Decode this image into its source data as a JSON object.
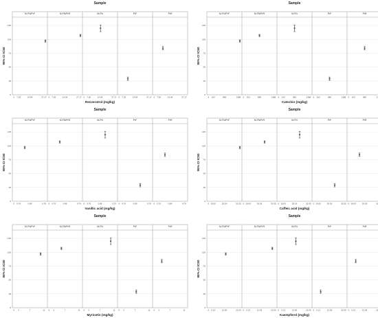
{
  "chart_data": [
    {
      "type": "scatter",
      "title": "Sample",
      "ylabel": "95% CI IC50",
      "xlabel": "Resveratrol (mg/kg)",
      "facets": [
        "M-FN/PrF",
        "M-FN/PrR",
        "M-FN",
        "PrF",
        "PrR"
      ],
      "xticks": [
        "7.26",
        "14.04",
        "27.17"
      ],
      "xlim": [
        0,
        27.17
      ],
      "yticks": [
        "0",
        "25",
        "50",
        "75",
        "100",
        "125"
      ],
      "ylim": [
        0,
        140
      ],
      "points": [
        {
          "x": 27.17,
          "y": 97,
          "low": 95,
          "high": 99
        },
        {
          "x": 27.17,
          "y": 107,
          "low": 105,
          "high": 109
        },
        {
          "x": 14.04,
          "y": 120,
          "low": 114,
          "high": 126
        },
        {
          "x": 7.26,
          "y": 29,
          "low": 26,
          "high": 32
        },
        {
          "x": 7.26,
          "y": 84,
          "low": 81,
          "high": 87
        }
      ]
    },
    {
      "type": "scatter",
      "title": "Sample",
      "ylabel": "95% CI IC50",
      "xlabel": "Catechin (mg/kg)",
      "facets": [
        "M-FN/PrF",
        "M-FN/PrR",
        "M-FN",
        "PrF",
        "PrR"
      ],
      "xticks": [
        "163",
        "686",
        "1368"
      ],
      "xlim": [
        0,
        1368
      ],
      "yticks": [
        "0",
        "25",
        "50",
        "75",
        "100",
        "125"
      ],
      "ylim": [
        0,
        140
      ],
      "points": [
        {
          "x": 1368,
          "y": 97,
          "low": 95,
          "high": 99
        },
        {
          "x": 686,
          "y": 107,
          "low": 105,
          "high": 109
        },
        {
          "x": 686,
          "y": 120,
          "low": 114,
          "high": 126
        },
        {
          "x": 686,
          "y": 29,
          "low": 26,
          "high": 32
        },
        {
          "x": 686,
          "y": 84,
          "low": 81,
          "high": 87
        }
      ]
    },
    {
      "type": "scatter",
      "title": "Sample",
      "ylabel": "95% CI IC50",
      "xlabel": "Vanillic acid (mg/kg)",
      "facets": [
        "M-FN/PrF",
        "M-FN/PrR",
        "M-FN",
        "PrF",
        "PrR"
      ],
      "xticks": [
        "0.76",
        "0.86",
        "0.79"
      ],
      "xlim": [
        0,
        3
      ],
      "yticks": [
        "0",
        "25",
        "50",
        "75",
        "100",
        "125"
      ],
      "ylim": [
        0,
        140
      ],
      "points": [
        {
          "x": 1,
          "y": 97,
          "low": 95,
          "high": 99
        },
        {
          "x": 1,
          "y": 107,
          "low": 105,
          "high": 109
        },
        {
          "x": 2,
          "y": 120,
          "low": 114,
          "high": 126
        },
        {
          "x": 2,
          "y": 29,
          "low": 26,
          "high": 32
        },
        {
          "x": 1,
          "y": 84,
          "low": 81,
          "high": 87
        }
      ]
    },
    {
      "type": "scatter",
      "title": "Sample",
      "ylabel": "95% CI IC50",
      "xlabel": "Caffeic acid (mg/kg)",
      "facets": [
        "M-FN/PrF",
        "M-FN/PrR",
        "M-FN",
        "PrF",
        "PrR"
      ],
      "xticks": [
        "19.05",
        "29.26",
        "30.35"
      ],
      "xlim": [
        0,
        3
      ],
      "yticks": [
        "0",
        "25",
        "50",
        "75",
        "100",
        "125"
      ],
      "ylim": [
        0,
        140
      ],
      "points": [
        {
          "x": 3,
          "y": 97,
          "low": 95,
          "high": 99
        },
        {
          "x": 2,
          "y": 107,
          "low": 105,
          "high": 109
        },
        {
          "x": 2,
          "y": 120,
          "low": 114,
          "high": 126
        },
        {
          "x": 2,
          "y": 29,
          "low": 26,
          "high": 32
        },
        {
          "x": 1,
          "y": 84,
          "low": 81,
          "high": 87
        }
      ]
    },
    {
      "type": "scatter",
      "title": "Sample",
      "ylabel": "95% CI IC50",
      "xlabel": "Myricetin (mg/kg)",
      "facets": [
        "M-FN/PrF",
        "M-FN/PrR",
        "M-FN",
        "PrF",
        "PrR"
      ],
      "xticks": [
        "3",
        "7",
        "11"
      ],
      "xlim": [
        0,
        13
      ],
      "yticks": [
        "0",
        "25",
        "50",
        "75",
        "100",
        "125"
      ],
      "ylim": [
        0,
        140
      ],
      "points": [
        {
          "x": 11,
          "y": 97,
          "low": 95,
          "high": 99
        },
        {
          "x": 5,
          "y": 107,
          "low": 105,
          "high": 109
        },
        {
          "x": 11,
          "y": 120,
          "low": 114,
          "high": 126
        },
        {
          "x": 7,
          "y": 29,
          "low": 26,
          "high": 32
        },
        {
          "x": 3,
          "y": 84,
          "low": 81,
          "high": 87
        }
      ]
    },
    {
      "type": "scatter",
      "title": "Sample",
      "ylabel": "95% CI IC50",
      "xlabel": "Kaempferol (mg/kg)",
      "facets": [
        "M-FN/PrF",
        "M-FN/PrR",
        "M-FN",
        "PrF",
        "PrR"
      ],
      "xticks": [
        "5.13",
        "13.05",
        "22.00"
      ],
      "xlim": [
        0,
        24
      ],
      "yticks": [
        "0",
        "25",
        "50",
        "75",
        "100",
        "125"
      ],
      "ylim": [
        0,
        140
      ],
      "points": [
        {
          "x": 13.05,
          "y": 97,
          "low": 95,
          "high": 99
        },
        {
          "x": 22.0,
          "y": 107,
          "low": 105,
          "high": 109
        },
        {
          "x": 13.05,
          "y": 120,
          "low": 114,
          "high": 126
        },
        {
          "x": 5.13,
          "y": 29,
          "low": 26,
          "high": 32
        },
        {
          "x": 5.13,
          "y": 84,
          "low": 81,
          "high": 87
        }
      ]
    }
  ]
}
